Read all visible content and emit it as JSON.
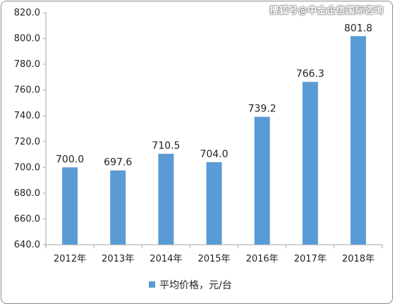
{
  "watermark": "搜狐号@中金企信国际咨询",
  "chart_data": {
    "type": "bar",
    "categories": [
      "2012年",
      "2013年",
      "2014年",
      "2015年",
      "2016年",
      "2017年",
      "2018年"
    ],
    "series": [
      {
        "name": "平均价格，元/台",
        "values": [
          700.0,
          697.6,
          710.5,
          704.0,
          739.2,
          766.3,
          801.8
        ]
      }
    ],
    "data_labels": [
      "700.0",
      "697.6",
      "710.5",
      "704.0",
      "739.2",
      "766.3",
      "801.8"
    ],
    "y_ticks": [
      "640.0",
      "660.0",
      "680.0",
      "700.0",
      "720.0",
      "740.0",
      "760.0",
      "780.0",
      "800.0",
      "820.0"
    ],
    "ylim": [
      640,
      820
    ],
    "bar_color": "#5b9bd5",
    "grid": false,
    "legend_position": "bottom"
  }
}
